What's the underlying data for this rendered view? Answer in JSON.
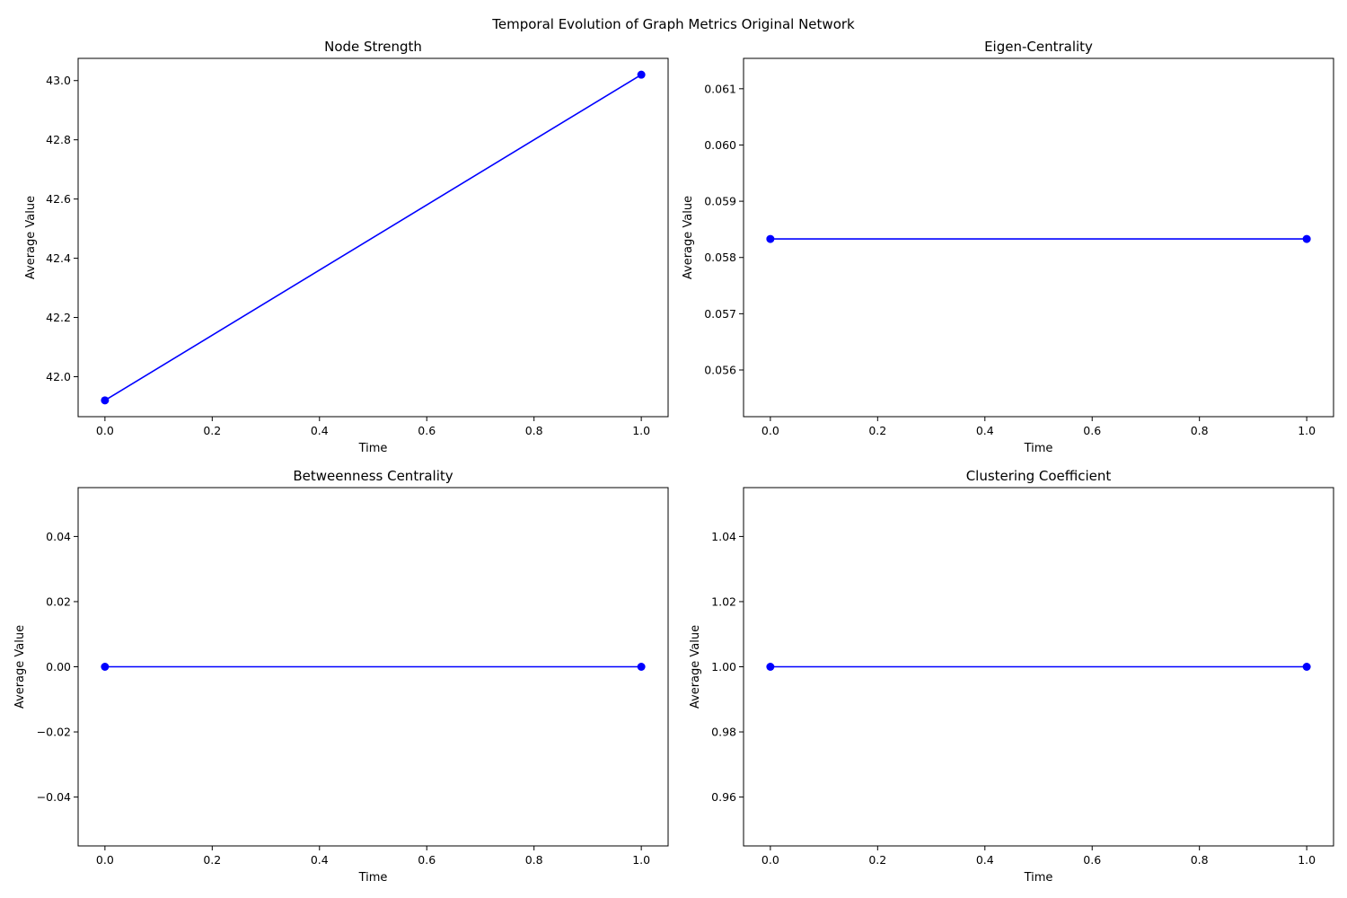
{
  "figure": {
    "title": "Temporal Evolution of Graph Metrics Original Network"
  },
  "chart_data": [
    {
      "type": "line",
      "title": "Node Strength",
      "xlabel": "Time",
      "ylabel": "Average Value",
      "x": [
        0,
        1
      ],
      "series": [
        {
          "values": [
            41.92,
            43.02
          ],
          "color": "#0000ff",
          "marker": "circle"
        }
      ],
      "xlim": [
        -0.05,
        1.05
      ],
      "ylim": [
        41.865,
        43.075
      ],
      "xticks": [
        0,
        0.2,
        0.4,
        0.6,
        0.8,
        1
      ],
      "xtick_labels": [
        "0.0",
        "0.2",
        "0.4",
        "0.6",
        "0.8",
        "1.0"
      ],
      "yticks": [
        42,
        42.2,
        42.4,
        42.6,
        42.8,
        43
      ],
      "ytick_labels": [
        "42.0",
        "42.2",
        "42.4",
        "42.6",
        "42.8",
        "43.0"
      ],
      "grid": false
    },
    {
      "type": "line",
      "title": "Eigen-Centrality",
      "xlabel": "Time",
      "ylabel": "Average Value",
      "x": [
        0,
        1
      ],
      "series": [
        {
          "values": [
            0.05833,
            0.05833
          ],
          "color": "#0000ff",
          "marker": "circle"
        }
      ],
      "xlim": [
        -0.05,
        1.05
      ],
      "ylim": [
        0.05517,
        0.06154
      ],
      "xticks": [
        0,
        0.2,
        0.4,
        0.6,
        0.8,
        1
      ],
      "xtick_labels": [
        "0.0",
        "0.2",
        "0.4",
        "0.6",
        "0.8",
        "1.0"
      ],
      "yticks": [
        0.056,
        0.057,
        0.058,
        0.059,
        0.06,
        0.061
      ],
      "ytick_labels": [
        "0.056",
        "0.057",
        "0.058",
        "0.059",
        "0.060",
        "0.061"
      ],
      "grid": false
    },
    {
      "type": "line",
      "title": "Betweenness Centrality",
      "xlabel": "Time",
      "ylabel": "Average Value",
      "x": [
        0,
        1
      ],
      "series": [
        {
          "values": [
            0,
            0
          ],
          "color": "#0000ff",
          "marker": "circle"
        }
      ],
      "xlim": [
        -0.05,
        1.05
      ],
      "ylim": [
        -0.055,
        0.055
      ],
      "xticks": [
        0,
        0.2,
        0.4,
        0.6,
        0.8,
        1
      ],
      "xtick_labels": [
        "0.0",
        "0.2",
        "0.4",
        "0.6",
        "0.8",
        "1.0"
      ],
      "yticks": [
        -0.04,
        -0.02,
        0,
        0.02,
        0.04
      ],
      "ytick_labels": [
        "−0.04",
        "−0.02",
        "0.00",
        "0.02",
        "0.04"
      ],
      "grid": false
    },
    {
      "type": "line",
      "title": "Clustering Coefficient",
      "xlabel": "Time",
      "ylabel": "Average Value",
      "x": [
        0,
        1
      ],
      "series": [
        {
          "values": [
            1,
            1
          ],
          "color": "#0000ff",
          "marker": "circle"
        }
      ],
      "xlim": [
        -0.05,
        1.05
      ],
      "ylim": [
        0.945,
        1.055
      ],
      "xticks": [
        0,
        0.2,
        0.4,
        0.6,
        0.8,
        1
      ],
      "xtick_labels": [
        "0.0",
        "0.2",
        "0.4",
        "0.6",
        "0.8",
        "1.0"
      ],
      "yticks": [
        0.96,
        0.98,
        1,
        1.02,
        1.04
      ],
      "ytick_labels": [
        "0.96",
        "0.98",
        "1.00",
        "1.02",
        "1.04"
      ],
      "grid": false
    }
  ]
}
